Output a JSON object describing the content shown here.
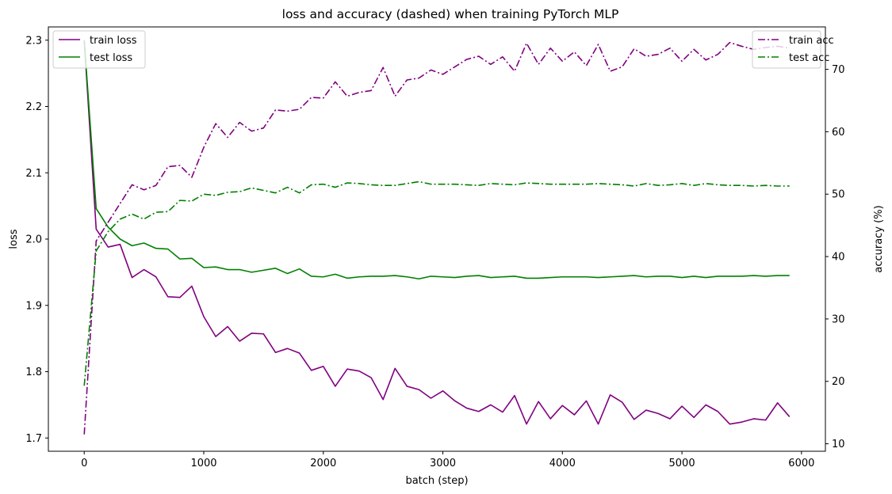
{
  "chart_data": {
    "type": "line",
    "title": "loss and accuracy (dashed) when training PyTorch MLP",
    "xlabel": "batch (step)",
    "ylabel_left": "loss",
    "ylabel_right": "accuracy (%)",
    "xlim": [
      -300,
      6200
    ],
    "ylim_left": [
      1.68,
      2.32
    ],
    "ylim_right": [
      8.8,
      76.8
    ],
    "x_ticks": [
      0,
      1000,
      2000,
      3000,
      4000,
      5000,
      6000
    ],
    "y_ticks_left": [
      1.7,
      1.8,
      1.9,
      2.0,
      2.1,
      2.2,
      2.3
    ],
    "y_ticks_right": [
      10,
      20,
      30,
      40,
      50,
      60,
      70
    ],
    "grid": false,
    "legend_left_position": "upper-left",
    "legend_right_position": "upper-right",
    "x": [
      0,
      100,
      200,
      300,
      400,
      500,
      600,
      700,
      800,
      900,
      1000,
      1100,
      1200,
      1300,
      1400,
      1500,
      1600,
      1700,
      1800,
      1900,
      2000,
      2100,
      2200,
      2300,
      2400,
      2500,
      2600,
      2700,
      2800,
      2900,
      3000,
      3100,
      3200,
      3300,
      3400,
      3500,
      3600,
      3700,
      3800,
      3900,
      4000,
      4100,
      4200,
      4300,
      4400,
      4500,
      4600,
      4700,
      4800,
      4900,
      5000,
      5100,
      5200,
      5300,
      5400,
      5500,
      5600,
      5700,
      5800,
      5900
    ],
    "series": [
      {
        "name": "train loss",
        "axis": "left",
        "color": "#800080",
        "style": "solid",
        "values": [
          2.3,
          2.015,
          1.988,
          1.992,
          1.942,
          1.954,
          1.943,
          1.913,
          1.912,
          1.929,
          1.883,
          1.853,
          1.868,
          1.846,
          1.858,
          1.857,
          1.829,
          1.835,
          1.828,
          1.802,
          1.808,
          1.778,
          1.804,
          1.801,
          1.791,
          1.758,
          1.805,
          1.778,
          1.773,
          1.76,
          1.771,
          1.756,
          1.745,
          1.74,
          1.75,
          1.739,
          1.764,
          1.721,
          1.755,
          1.729,
          1.749,
          1.735,
          1.756,
          1.721,
          1.765,
          1.754,
          1.728,
          1.742,
          1.737,
          1.729,
          1.748,
          1.731,
          1.75,
          1.74,
          1.721,
          1.724,
          1.729,
          1.727,
          1.753,
          1.732
        ]
      },
      {
        "name": "test loss",
        "axis": "left",
        "color": "#008000",
        "style": "solid",
        "values": [
          2.3,
          2.046,
          2.018,
          2.0,
          1.99,
          1.994,
          1.986,
          1.985,
          1.97,
          1.971,
          1.957,
          1.958,
          1.954,
          1.954,
          1.95,
          1.953,
          1.956,
          1.948,
          1.955,
          1.944,
          1.943,
          1.947,
          1.941,
          1.943,
          1.944,
          1.944,
          1.945,
          1.943,
          1.94,
          1.944,
          1.943,
          1.942,
          1.944,
          1.945,
          1.942,
          1.943,
          1.944,
          1.941,
          1.941,
          1.942,
          1.943,
          1.943,
          1.943,
          1.942,
          1.943,
          1.944,
          1.945,
          1.943,
          1.944,
          1.944,
          1.942,
          1.944,
          1.942,
          1.944,
          1.944,
          1.944,
          1.945,
          1.944,
          1.945,
          1.945
        ]
      },
      {
        "name": "train acc",
        "axis": "right",
        "color": "#800080",
        "style": "dashdot",
        "values": [
          11.5,
          42.5,
          45.5,
          48.5,
          51.5,
          50.7,
          51.4,
          54.4,
          54.6,
          52.7,
          57.5,
          61.3,
          59.1,
          61.5,
          60.1,
          60.6,
          63.5,
          63.3,
          63.6,
          65.5,
          65.4,
          68.0,
          65.7,
          66.3,
          66.6,
          70.3,
          65.7,
          68.3,
          68.6,
          69.9,
          69.2,
          70.4,
          71.6,
          72.1,
          70.8,
          72.0,
          69.7,
          74.2,
          70.8,
          73.4,
          71.3,
          72.8,
          70.6,
          74.0,
          69.7,
          70.4,
          73.3,
          72.1,
          72.4,
          73.4,
          71.3,
          73.2,
          71.5,
          72.4,
          74.3,
          73.7,
          73.2,
          73.5,
          73.7,
          73.4
        ]
      },
      {
        "name": "test acc",
        "axis": "right",
        "color": "#008000",
        "style": "dashdot",
        "values": [
          19.3,
          40.9,
          44.0,
          46.0,
          46.8,
          46.0,
          47.1,
          47.2,
          49.0,
          48.9,
          50.0,
          49.8,
          50.3,
          50.4,
          51.0,
          50.6,
          50.2,
          51.1,
          50.2,
          51.5,
          51.6,
          51.1,
          51.8,
          51.7,
          51.5,
          51.4,
          51.4,
          51.7,
          52.0,
          51.6,
          51.6,
          51.6,
          51.5,
          51.4,
          51.7,
          51.6,
          51.5,
          51.8,
          51.7,
          51.6,
          51.6,
          51.6,
          51.6,
          51.7,
          51.6,
          51.5,
          51.3,
          51.7,
          51.4,
          51.5,
          51.7,
          51.4,
          51.7,
          51.5,
          51.4,
          51.4,
          51.3,
          51.4,
          51.3,
          51.3
        ]
      }
    ]
  }
}
